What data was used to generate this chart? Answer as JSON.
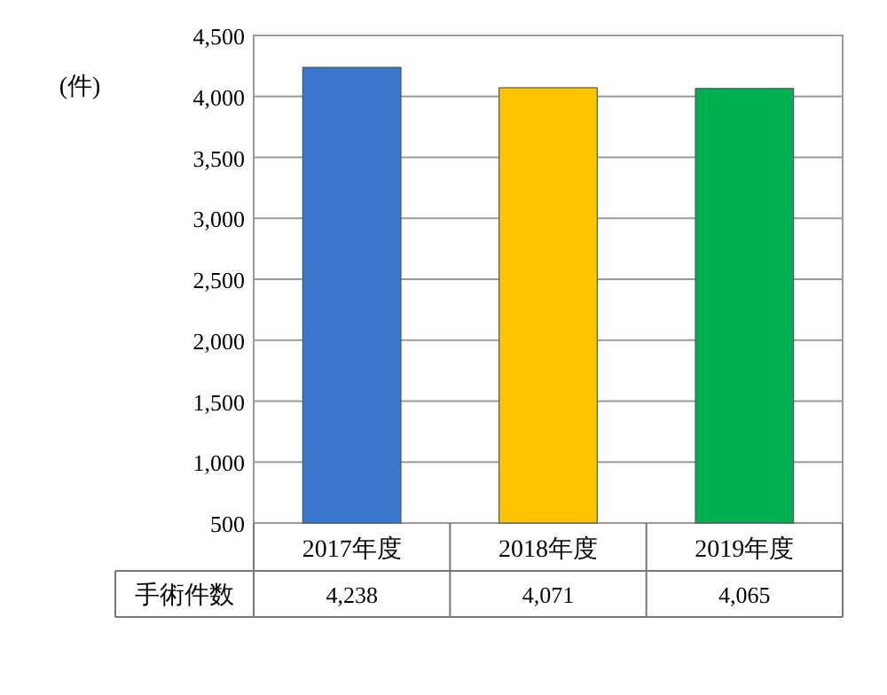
{
  "chart_data": {
    "type": "bar",
    "ylabel": "(件)",
    "categories": [
      "2017年度",
      "2018年度",
      "2019年度"
    ],
    "series": [
      {
        "name": "手術件数",
        "colors": [
          "#3a78cc",
          "#ffc400",
          "#00b050"
        ],
        "values": [
          4238,
          4071,
          4065
        ],
        "value_labels": [
          "4,238",
          "4,071",
          "4,065"
        ]
      }
    ],
    "ylim": [
      500,
      4500
    ],
    "yticks": [
      {
        "value": 500,
        "label": "500"
      },
      {
        "value": 1000,
        "label": "1,000"
      },
      {
        "value": 1500,
        "label": "1,500"
      },
      {
        "value": 2000,
        "label": "2,000"
      },
      {
        "value": 2500,
        "label": "2,500"
      },
      {
        "value": 3000,
        "label": "3,000"
      },
      {
        "value": 3500,
        "label": "3,500"
      },
      {
        "value": 4000,
        "label": "4,000"
      },
      {
        "value": 4500,
        "label": "4,500"
      }
    ],
    "grid": "y"
  }
}
